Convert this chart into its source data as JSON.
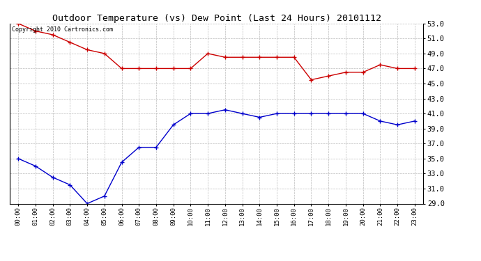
{
  "title": "Outdoor Temperature (vs) Dew Point (Last 24 Hours) 20101112",
  "copyright_text": "Copyright 2010 Cartronics.com",
  "hours": [
    0,
    1,
    2,
    3,
    4,
    5,
    6,
    7,
    8,
    9,
    10,
    11,
    12,
    13,
    14,
    15,
    16,
    17,
    18,
    19,
    20,
    21,
    22,
    23
  ],
  "hour_labels": [
    "00:00",
    "01:00",
    "02:00",
    "03:00",
    "04:00",
    "05:00",
    "06:00",
    "07:00",
    "08:00",
    "09:00",
    "10:00",
    "11:00",
    "12:00",
    "13:00",
    "14:00",
    "15:00",
    "16:00",
    "17:00",
    "18:00",
    "19:00",
    "20:00",
    "21:00",
    "22:00",
    "23:00"
  ],
  "temp_red": [
    53.0,
    52.0,
    51.5,
    50.5,
    49.5,
    49.0,
    47.0,
    47.0,
    47.0,
    47.0,
    47.0,
    49.0,
    48.5,
    48.5,
    48.5,
    48.5,
    48.5,
    45.5,
    46.0,
    46.5,
    46.5,
    47.5,
    47.0,
    47.0
  ],
  "dew_blue": [
    35.0,
    34.0,
    32.5,
    31.5,
    29.0,
    30.0,
    34.5,
    36.5,
    36.5,
    39.5,
    41.0,
    41.0,
    41.5,
    41.0,
    40.5,
    41.0,
    41.0,
    41.0,
    41.0,
    41.0,
    41.0,
    40.0,
    39.5,
    40.0
  ],
  "ylim": [
    29.0,
    53.0
  ],
  "yticks": [
    29.0,
    31.0,
    33.0,
    35.0,
    37.0,
    39.0,
    41.0,
    43.0,
    45.0,
    47.0,
    49.0,
    51.0,
    53.0
  ],
  "red_color": "#cc0000",
  "blue_color": "#0000cc",
  "grid_color": "#bbbbbb",
  "bg_color": "#ffffff",
  "plot_bg_color": "#ffffff"
}
